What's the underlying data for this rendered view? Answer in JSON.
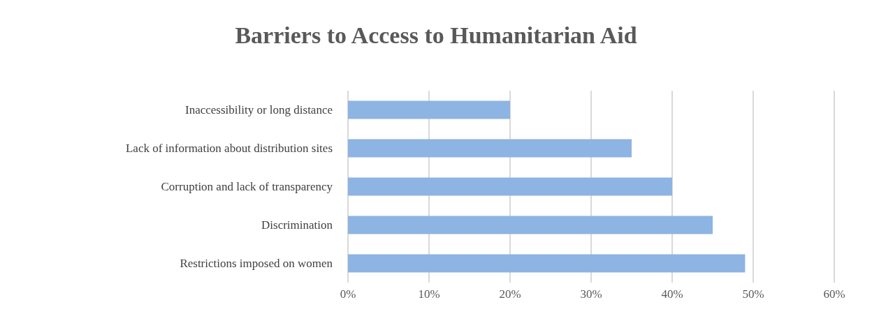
{
  "chart_data": {
    "type": "bar",
    "orientation": "horizontal",
    "title": "Barriers to Access to Humanitarian Aid",
    "categories": [
      "Inaccessibility or long distance",
      "Lack of information about distribution sites",
      "Corruption and lack of transparency",
      "Discrimination",
      "Restrictions imposed on women"
    ],
    "values": [
      20,
      35,
      40,
      45,
      49
    ],
    "color": "#8db4e2",
    "xlim": [
      0,
      60
    ],
    "xticks": [
      {
        "value": 0,
        "label": "0%"
      },
      {
        "value": 10,
        "label": "10%"
      },
      {
        "value": 20,
        "label": "20%"
      },
      {
        "value": 30,
        "label": "30%"
      },
      {
        "value": 40,
        "label": "40%"
      },
      {
        "value": 50,
        "label": "50%"
      },
      {
        "value": 60,
        "label": "60%"
      }
    ],
    "grid": "x"
  }
}
